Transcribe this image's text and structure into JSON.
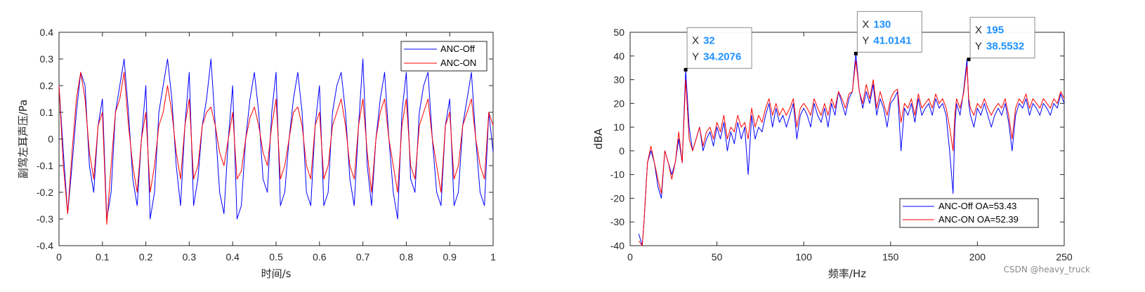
{
  "watermark": "CSDN @heavy_truck",
  "chart_data": [
    {
      "type": "line",
      "xlabel": "时间/s",
      "ylabel": "副驾左耳声压/Pa",
      "xlim": [
        0,
        1
      ],
      "ylim": [
        -0.4,
        0.4
      ],
      "xticks": [
        "0",
        "0.1",
        "0.2",
        "0.3",
        "0.4",
        "0.5",
        "0.6",
        "0.7",
        "0.8",
        "0.9",
        "1"
      ],
      "yticks": [
        "-0.4",
        "-0.3",
        "-0.2",
        "-0.1",
        "0",
        "0.1",
        "0.2",
        "0.3",
        "0.4"
      ],
      "grid": false,
      "legend_position": "top-right",
      "series": [
        {
          "name": "ANC-Off",
          "color": "#0000ff",
          "x": [
            0,
            0.01,
            0.02,
            0.03,
            0.04,
            0.05,
            0.06,
            0.07,
            0.08,
            0.09,
            0.1,
            0.11,
            0.12,
            0.13,
            0.14,
            0.15,
            0.16,
            0.17,
            0.18,
            0.19,
            0.2,
            0.21,
            0.22,
            0.23,
            0.24,
            0.25,
            0.26,
            0.27,
            0.28,
            0.29,
            0.3,
            0.31,
            0.32,
            0.33,
            0.34,
            0.35,
            0.36,
            0.37,
            0.38,
            0.39,
            0.4,
            0.41,
            0.42,
            0.43,
            0.44,
            0.45,
            0.46,
            0.47,
            0.48,
            0.49,
            0.5,
            0.51,
            0.52,
            0.53,
            0.54,
            0.55,
            0.56,
            0.57,
            0.58,
            0.59,
            0.6,
            0.61,
            0.62,
            0.63,
            0.64,
            0.65,
            0.66,
            0.67,
            0.68,
            0.69,
            0.7,
            0.71,
            0.72,
            0.73,
            0.74,
            0.75,
            0.76,
            0.77,
            0.78,
            0.79,
            0.8,
            0.81,
            0.82,
            0.83,
            0.84,
            0.85,
            0.86,
            0.87,
            0.88,
            0.89,
            0.9,
            0.91,
            0.92,
            0.93,
            0.94,
            0.95,
            0.96,
            0.97,
            0.98,
            0.99,
            1.0
          ],
          "y": [
            0.2,
            -0.05,
            -0.28,
            -0.1,
            0.1,
            0.25,
            0.2,
            -0.1,
            -0.2,
            0.05,
            0.15,
            -0.3,
            -0.2,
            0.1,
            0.2,
            0.3,
            0.1,
            -0.15,
            -0.25,
            0.0,
            0.2,
            -0.3,
            -0.2,
            0.1,
            0.2,
            0.3,
            0.15,
            -0.1,
            -0.25,
            0.05,
            0.25,
            -0.25,
            -0.15,
            0.05,
            0.15,
            0.3,
            0.05,
            -0.2,
            -0.28,
            0.0,
            0.2,
            -0.3,
            -0.25,
            0.0,
            0.15,
            0.25,
            0.1,
            -0.15,
            -0.2,
            0.1,
            0.25,
            -0.25,
            -0.2,
            0.0,
            0.15,
            0.25,
            0.1,
            -0.2,
            -0.25,
            0.05,
            0.2,
            -0.25,
            -0.2,
            0.1,
            0.2,
            0.25,
            0.1,
            -0.15,
            -0.25,
            0.05,
            0.3,
            -0.1,
            -0.25,
            0.0,
            0.15,
            0.25,
            0.0,
            -0.2,
            -0.3,
            0.1,
            0.25,
            -0.15,
            -0.2,
            0.1,
            0.2,
            0.25,
            0.0,
            -0.2,
            -0.25,
            0.05,
            0.15,
            -0.25,
            -0.2,
            0.05,
            0.15,
            0.25,
            0.0,
            -0.2,
            -0.25,
            0.1,
            -0.05
          ]
        },
        {
          "name": "ANC-ON",
          "color": "#ff0000",
          "x": [
            0,
            0.01,
            0.02,
            0.03,
            0.04,
            0.05,
            0.06,
            0.07,
            0.08,
            0.09,
            0.1,
            0.11,
            0.12,
            0.13,
            0.14,
            0.15,
            0.16,
            0.17,
            0.18,
            0.19,
            0.2,
            0.21,
            0.22,
            0.23,
            0.24,
            0.25,
            0.26,
            0.27,
            0.28,
            0.29,
            0.3,
            0.31,
            0.32,
            0.33,
            0.34,
            0.35,
            0.36,
            0.37,
            0.38,
            0.39,
            0.4,
            0.41,
            0.42,
            0.43,
            0.44,
            0.45,
            0.46,
            0.47,
            0.48,
            0.49,
            0.5,
            0.51,
            0.52,
            0.53,
            0.54,
            0.55,
            0.56,
            0.57,
            0.58,
            0.59,
            0.6,
            0.61,
            0.62,
            0.63,
            0.64,
            0.65,
            0.66,
            0.67,
            0.68,
            0.69,
            0.7,
            0.71,
            0.72,
            0.73,
            0.74,
            0.75,
            0.76,
            0.77,
            0.78,
            0.79,
            0.8,
            0.81,
            0.82,
            0.83,
            0.84,
            0.85,
            0.86,
            0.87,
            0.88,
            0.89,
            0.9,
            0.91,
            0.92,
            0.93,
            0.94,
            0.95,
            0.96,
            0.97,
            0.98,
            0.99,
            1.0
          ],
          "y": [
            0.2,
            -0.1,
            -0.28,
            -0.05,
            0.15,
            0.25,
            0.15,
            -0.05,
            -0.15,
            0.05,
            0.1,
            -0.32,
            -0.1,
            0.1,
            0.15,
            0.25,
            0.05,
            -0.1,
            -0.2,
            0.0,
            0.1,
            -0.2,
            -0.1,
            0.05,
            0.1,
            0.2,
            0.1,
            -0.05,
            -0.15,
            0.05,
            0.15,
            -0.15,
            -0.1,
            0.05,
            0.1,
            0.12,
            0.05,
            -0.05,
            -0.1,
            0.0,
            0.1,
            -0.15,
            -0.12,
            0.0,
            0.08,
            0.12,
            0.05,
            -0.05,
            -0.1,
            0.05,
            0.15,
            -0.15,
            -0.1,
            0.0,
            0.1,
            0.12,
            0.05,
            -0.1,
            -0.15,
            0.05,
            0.1,
            -0.15,
            -0.1,
            0.05,
            0.1,
            0.15,
            0.05,
            -0.1,
            -0.15,
            0.05,
            0.15,
            -0.05,
            -0.2,
            0.0,
            0.1,
            0.15,
            0.0,
            -0.1,
            -0.2,
            0.05,
            0.15,
            -0.1,
            -0.15,
            0.05,
            0.1,
            0.15,
            0.0,
            -0.1,
            -0.2,
            0.05,
            0.1,
            -0.15,
            -0.1,
            0.05,
            0.1,
            0.15,
            0.0,
            -0.1,
            -0.15,
            0.1,
            0.05
          ]
        }
      ]
    },
    {
      "type": "line",
      "xlabel": "频率/Hz",
      "ylabel": "dBA",
      "xlim": [
        0,
        250
      ],
      "ylim": [
        -40,
        50
      ],
      "xticks": [
        "0",
        "50",
        "100",
        "150",
        "200",
        "250"
      ],
      "yticks": [
        "-40",
        "-30",
        "-20",
        "-10",
        "0",
        "10",
        "20",
        "30",
        "40",
        "50"
      ],
      "grid": false,
      "legend_position": "bottom-right",
      "series": [
        {
          "name": "ANC-Off  OA=53.43",
          "color": "#0000ff",
          "x": [
            5,
            7,
            8,
            10,
            12,
            14,
            16,
            18,
            20,
            22,
            24,
            26,
            28,
            30,
            32,
            34,
            36,
            38,
            40,
            42,
            44,
            46,
            48,
            50,
            52,
            54,
            56,
            58,
            60,
            62,
            64,
            66,
            68,
            70,
            72,
            74,
            76,
            78,
            80,
            82,
            84,
            86,
            88,
            90,
            92,
            94,
            96,
            98,
            100,
            102,
            104,
            106,
            108,
            110,
            112,
            114,
            116,
            118,
            120,
            122,
            124,
            126,
            128,
            130,
            132,
            134,
            136,
            138,
            140,
            142,
            144,
            146,
            148,
            150,
            152,
            154,
            156,
            158,
            160,
            162,
            164,
            166,
            168,
            170,
            172,
            174,
            176,
            178,
            180,
            182,
            184,
            186,
            187,
            188,
            190,
            192,
            194,
            195,
            196,
            198,
            200,
            202,
            204,
            206,
            208,
            210,
            212,
            214,
            216,
            218,
            220,
            222,
            224,
            226,
            228,
            230,
            232,
            234,
            236,
            238,
            240,
            242,
            244,
            246,
            248,
            250
          ],
          "y": [
            -35,
            -40,
            -30,
            -5,
            0,
            -5,
            -15,
            -20,
            0,
            -5,
            -10,
            -5,
            5,
            -5,
            34.2076,
            10,
            0,
            5,
            10,
            0,
            5,
            8,
            2,
            10,
            5,
            12,
            0,
            8,
            3,
            12,
            5,
            10,
            -10,
            15,
            5,
            10,
            8,
            15,
            20,
            10,
            18,
            12,
            15,
            10,
            15,
            20,
            5,
            15,
            18,
            15,
            10,
            20,
            15,
            12,
            18,
            10,
            20,
            15,
            25,
            20,
            15,
            22,
            25,
            41.0141,
            25,
            18,
            25,
            20,
            28,
            15,
            22,
            18,
            10,
            20,
            22,
            25,
            0,
            18,
            15,
            20,
            12,
            22,
            15,
            18,
            20,
            15,
            22,
            18,
            20,
            15,
            0,
            -18,
            10,
            20,
            15,
            25,
            38.5532,
            20,
            15,
            10,
            18,
            15,
            20,
            15,
            10,
            15,
            18,
            15,
            20,
            12,
            0,
            15,
            20,
            18,
            22,
            15,
            20,
            18,
            15,
            20,
            18,
            15,
            20,
            18,
            24,
            20
          ]
        },
        {
          "name": "ANC-ON  OA=52.39",
          "color": "#ff0000",
          "x": [
            5,
            7,
            8,
            10,
            12,
            14,
            16,
            18,
            20,
            22,
            24,
            26,
            28,
            30,
            32,
            34,
            36,
            38,
            40,
            42,
            44,
            46,
            48,
            50,
            52,
            54,
            56,
            58,
            60,
            62,
            64,
            66,
            68,
            70,
            72,
            74,
            76,
            78,
            80,
            82,
            84,
            86,
            88,
            90,
            92,
            94,
            96,
            98,
            100,
            102,
            104,
            106,
            108,
            110,
            112,
            114,
            116,
            118,
            120,
            122,
            124,
            126,
            128,
            130,
            132,
            134,
            136,
            138,
            140,
            142,
            144,
            146,
            148,
            150,
            152,
            154,
            156,
            158,
            160,
            162,
            164,
            166,
            168,
            170,
            172,
            174,
            176,
            178,
            180,
            182,
            184,
            186,
            187,
            188,
            190,
            192,
            194,
            195,
            196,
            198,
            200,
            202,
            204,
            206,
            208,
            210,
            212,
            214,
            216,
            218,
            220,
            222,
            224,
            226,
            228,
            230,
            232,
            234,
            236,
            238,
            240,
            242,
            244,
            246,
            248,
            250
          ],
          "y": [
            -38,
            -40,
            -30,
            -5,
            2,
            -5,
            -12,
            -18,
            0,
            -5,
            -12,
            -5,
            8,
            -5,
            30,
            5,
            0,
            5,
            10,
            2,
            8,
            10,
            5,
            12,
            8,
            15,
            5,
            10,
            8,
            15,
            10,
            12,
            5,
            18,
            10,
            15,
            12,
            18,
            22,
            15,
            20,
            15,
            18,
            15,
            18,
            22,
            10,
            18,
            20,
            18,
            15,
            22,
            18,
            15,
            20,
            15,
            22,
            18,
            25,
            22,
            18,
            24,
            25,
            38,
            25,
            20,
            28,
            22,
            30,
            18,
            25,
            20,
            15,
            22,
            25,
            26,
            12,
            20,
            18,
            22,
            15,
            24,
            18,
            20,
            22,
            18,
            24,
            20,
            22,
            18,
            10,
            0,
            15,
            22,
            18,
            24,
            36,
            22,
            18,
            15,
            20,
            18,
            22,
            18,
            15,
            18,
            20,
            18,
            22,
            15,
            5,
            18,
            22,
            20,
            24,
            18,
            22,
            20,
            18,
            22,
            20,
            18,
            22,
            20,
            25,
            22
          ]
        }
      ],
      "datatips": [
        {
          "x_key": "X",
          "x_value": "32",
          "y_key": "Y",
          "y_value": "34.2076",
          "x": 32,
          "y": 34.2076
        },
        {
          "x_key": "X",
          "x_value": "130",
          "y_key": "Y",
          "y_value": "41.0141",
          "x": 130,
          "y": 41.0141
        },
        {
          "x_key": "X",
          "x_value": "195",
          "y_key": "Y",
          "y_value": "38.5532",
          "x": 195,
          "y": 38.5532
        }
      ]
    }
  ]
}
